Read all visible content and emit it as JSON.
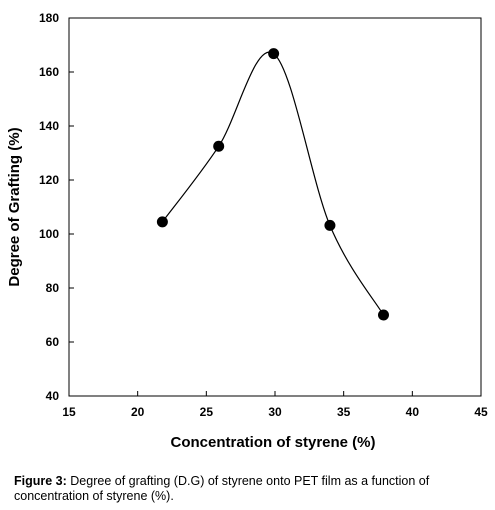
{
  "chart_data": {
    "type": "line",
    "xlabel": "Concentration of styrene (%)",
    "ylabel": "Degree of Grafting (%)",
    "xlim": [
      15,
      45
    ],
    "ylim": [
      40,
      180
    ],
    "xticks": [
      15,
      20,
      25,
      30,
      35,
      40,
      45
    ],
    "yticks": [
      40,
      60,
      80,
      100,
      120,
      140,
      160,
      180
    ],
    "grid": false,
    "legend": "none",
    "line_style": "smooth",
    "marker": "filled-circle",
    "series": [
      {
        "x": [
          21.8,
          25.9,
          29.9,
          34.0,
          37.9
        ],
        "y": [
          104.5,
          132.5,
          166.8,
          103.2,
          70.0
        ]
      }
    ]
  },
  "caption": {
    "lead": "Figure 3:",
    "text": " Degree of grafting (D.G) of styrene onto PET film as a function of concentration of styrene (%)."
  }
}
